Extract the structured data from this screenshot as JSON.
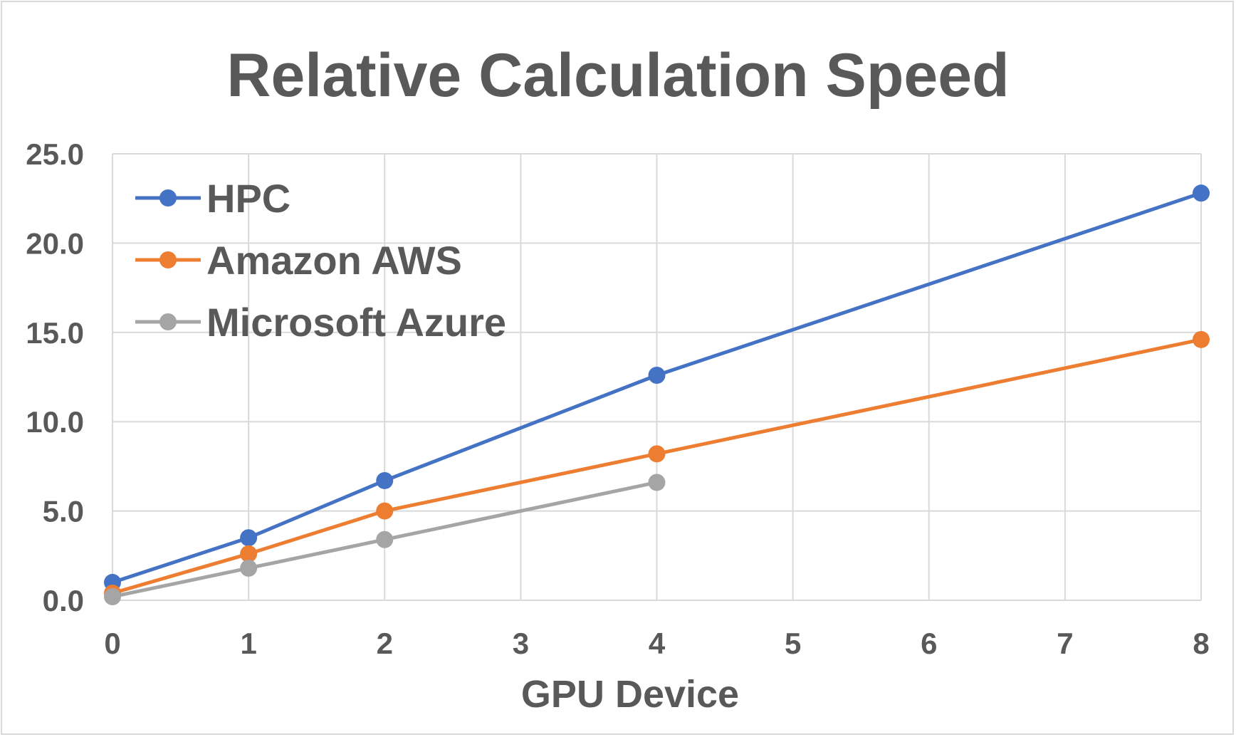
{
  "chart_data": {
    "type": "line",
    "title": "Relative Calculation Speed",
    "xlabel": "GPU Device",
    "ylabel": "",
    "xlim": [
      0,
      8
    ],
    "ylim": [
      0,
      25
    ],
    "x_ticks": [
      0,
      1,
      2,
      3,
      4,
      5,
      6,
      7,
      8
    ],
    "y_ticks": [
      0,
      5,
      10,
      15,
      20,
      25
    ],
    "y_tick_labels": [
      "0.0",
      "5.0",
      "10.0",
      "15.0",
      "20.0",
      "25.0"
    ],
    "grid": true,
    "legend_position": "top-left",
    "series": [
      {
        "name": "HPC",
        "color": "#4472c4",
        "x": [
          0,
          1,
          2,
          4,
          8
        ],
        "y": [
          1.0,
          3.5,
          6.7,
          12.6,
          22.8
        ]
      },
      {
        "name": "Amazon AWS",
        "color": "#ed7d31",
        "x": [
          0,
          1,
          2,
          4,
          8
        ],
        "y": [
          0.4,
          2.6,
          5.0,
          8.2,
          14.6
        ]
      },
      {
        "name": "Microsoft Azure",
        "color": "#a5a5a5",
        "x": [
          0,
          1,
          2,
          4
        ],
        "y": [
          0.2,
          1.8,
          3.4,
          6.6
        ]
      }
    ]
  }
}
